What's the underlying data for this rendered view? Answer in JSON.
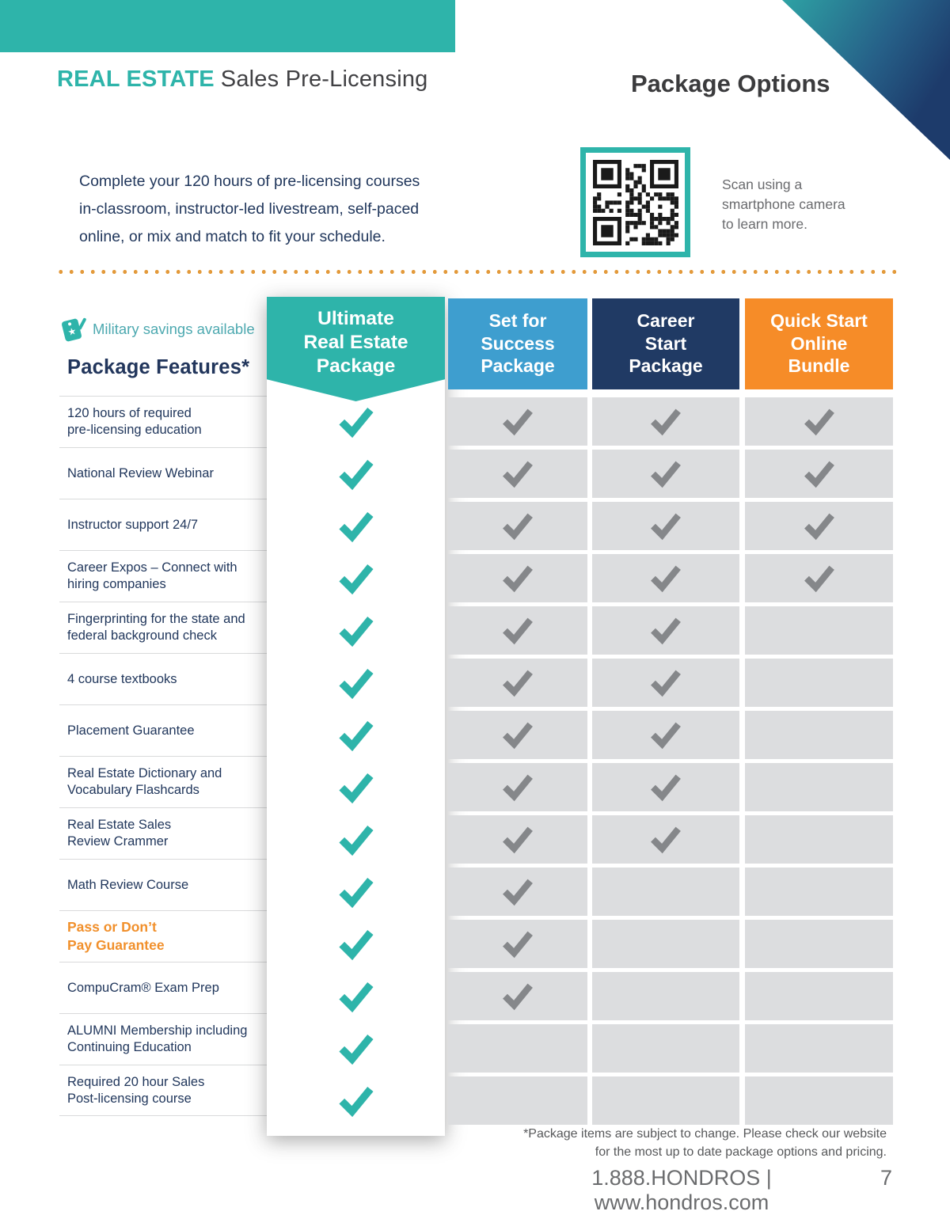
{
  "header": {
    "brand": "REAL ESTATE",
    "brand_subtitle": "Sales Pre-Licensing",
    "page_title": "Package Options"
  },
  "intro_text": "Complete your 120 hours of pre-licensing courses\nin-classroom, instructor-led livestream, self-paced\nonline, or mix and match to fit your schedule.",
  "qr_caption": "Scan using a\nsmartphone camera\nto learn more.",
  "military_note": "Military savings available",
  "table": {
    "features_heading": "Package Features*",
    "columns": [
      {
        "label": "Ultimate\nReal Estate\nPackage",
        "color": "#2EB4AA"
      },
      {
        "label": "Set for\nSuccess\nPackage",
        "color": "#3E9ECF"
      },
      {
        "label": "Career\nStart\nPackage",
        "color": "#203A64"
      },
      {
        "label": "Quick Start\nOnline\nBundle",
        "color": "#F68C28"
      }
    ],
    "features": [
      {
        "label": "120 hours of required\npre-licensing education",
        "checks": [
          true,
          true,
          true,
          true
        ]
      },
      {
        "label": "National Review Webinar",
        "checks": [
          true,
          true,
          true,
          true
        ]
      },
      {
        "label": "Instructor support 24/7",
        "checks": [
          true,
          true,
          true,
          true
        ]
      },
      {
        "label": "Career Expos – Connect with\nhiring companies",
        "checks": [
          true,
          true,
          true,
          true
        ]
      },
      {
        "label": "Fingerprinting for the state and\nfederal background check",
        "checks": [
          true,
          true,
          true,
          false
        ]
      },
      {
        "label": "4 course textbooks",
        "checks": [
          true,
          true,
          true,
          false
        ]
      },
      {
        "label": "Placement Guarantee",
        "checks": [
          true,
          true,
          true,
          false
        ]
      },
      {
        "label": "Real Estate Dictionary and\nVocabulary Flashcards",
        "checks": [
          true,
          true,
          true,
          false
        ]
      },
      {
        "label": "Real Estate Sales\nReview Crammer",
        "checks": [
          true,
          true,
          true,
          false
        ]
      },
      {
        "label": "Math Review Course",
        "checks": [
          true,
          true,
          false,
          false
        ]
      },
      {
        "label": "Pass or Don’t\nPay Guarantee",
        "checks": [
          true,
          true,
          false,
          false
        ],
        "accent": true
      },
      {
        "label": "CompuCram® Exam Prep",
        "checks": [
          true,
          true,
          false,
          false
        ]
      },
      {
        "label": "ALUMNI Membership including\nContinuing Education",
        "checks": [
          true,
          false,
          false,
          false
        ]
      },
      {
        "label": "Required 20 hour Sales\nPost-licensing course",
        "checks": [
          true,
          false,
          false,
          false
        ]
      }
    ]
  },
  "footer": {
    "note": "*Package items are subject to change. Please check our website\nfor the most up to date package options and pricing.",
    "contact": "1.888.HONDROS | www.hondros.com",
    "page_number": "7"
  },
  "colors": {
    "teal": "#2EB4AA",
    "blue": "#3E9ECF",
    "navy": "#203A64",
    "orange": "#F68C28",
    "accent_text_orange": "#F1902C",
    "divider_dot": "#E39A3B",
    "cell_gray": "#DCDDDF",
    "check_gray": "#85878A",
    "text_navy": "#21375C"
  }
}
